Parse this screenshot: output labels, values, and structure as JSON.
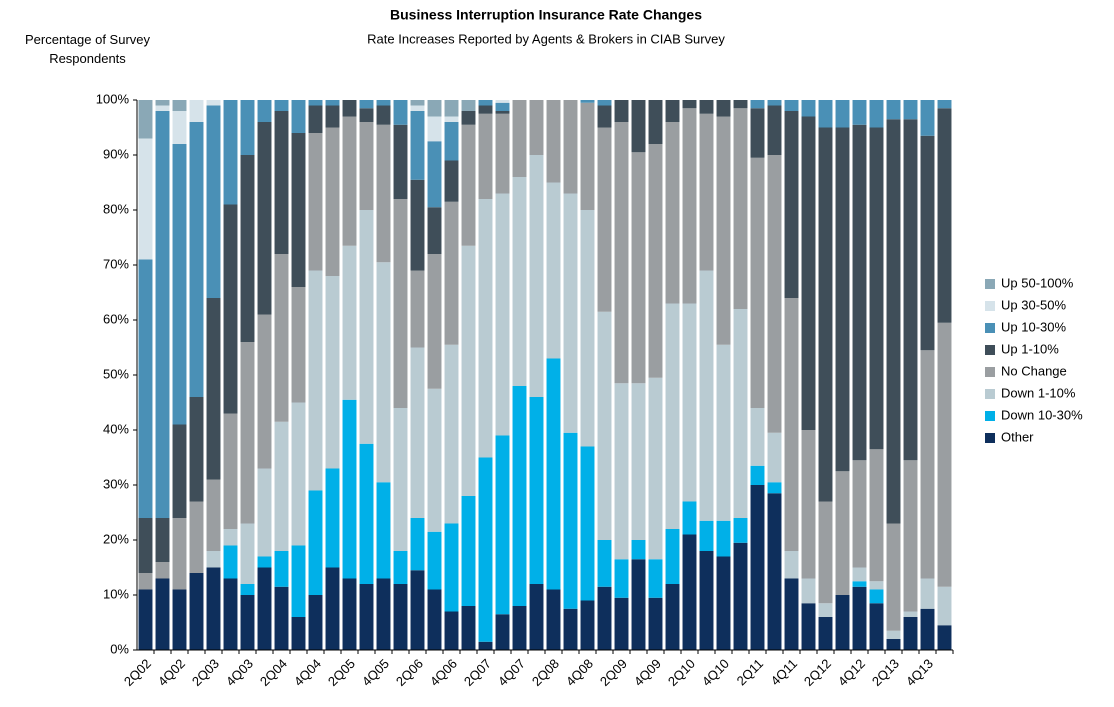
{
  "chart_data": {
    "type": "stacked_bar",
    "title": "Business Interruption Insurance Rate Changes",
    "subtitle": "Rate Increases Reported by Agents & Brokers in CIAB Survey",
    "y_axis_label": "Percentage of Survey Respondents",
    "categories": [
      "2Q02",
      null,
      "4Q02",
      null,
      "2Q03",
      null,
      "4Q03",
      null,
      "2Q04",
      null,
      "4Q04",
      null,
      "2Q05",
      null,
      "4Q05",
      null,
      "2Q06",
      null,
      "4Q06",
      null,
      "2Q07",
      null,
      "4Q07",
      null,
      "2Q08",
      null,
      "4Q08",
      null,
      "2Q09",
      null,
      "4Q09",
      null,
      "2Q10",
      null,
      "4Q10",
      null,
      "2Q11",
      null,
      "4Q11",
      null,
      "2Q12",
      null,
      "4Q12",
      null,
      "2Q13",
      null,
      "4Q13",
      null
    ],
    "ylim": [
      0,
      100
    ],
    "yticks": [
      {
        "value": 0,
        "label": "0%"
      },
      {
        "value": 10,
        "label": "10%"
      },
      {
        "value": 20,
        "label": "20%"
      },
      {
        "value": 30,
        "label": "30%"
      },
      {
        "value": 40,
        "label": "40%"
      },
      {
        "value": 50,
        "label": "50%"
      },
      {
        "value": 60,
        "label": "60%"
      },
      {
        "value": 70,
        "label": "70%"
      },
      {
        "value": 80,
        "label": "80%"
      },
      {
        "value": 90,
        "label": "90%"
      },
      {
        "value": 100,
        "label": "100%"
      }
    ],
    "legend_position": "right",
    "series": [
      {
        "name": "Up 50-100%",
        "color": "#8aa8b6",
        "values": [
          7,
          1,
          2,
          0,
          0,
          0,
          0,
          0,
          0,
          0,
          0,
          0,
          0,
          0,
          0,
          0,
          1,
          3,
          3,
          2,
          0,
          0,
          0,
          0,
          0,
          0,
          0,
          0,
          0,
          0,
          0,
          0,
          0,
          0,
          0,
          0,
          0,
          0,
          0,
          0,
          0,
          0,
          0,
          0,
          0,
          0,
          0,
          0
        ]
      },
      {
        "name": "Up 30-50%",
        "color": "#d6e3ea",
        "values": [
          22,
          1,
          6,
          4,
          1,
          0,
          0,
          0,
          0,
          0,
          0,
          0,
          0,
          0,
          0,
          0,
          1,
          4.5,
          1,
          0,
          0,
          0.5,
          0,
          0,
          0,
          0,
          0,
          0,
          0,
          0,
          0,
          0,
          0,
          0,
          0,
          0,
          0,
          0,
          0,
          0,
          0,
          0,
          0,
          0,
          0,
          0,
          0,
          0
        ]
      },
      {
        "name": "Up 10-30%",
        "color": "#4a90b6",
        "values": [
          47,
          74,
          51,
          50,
          35,
          19,
          10,
          4,
          2,
          6,
          1,
          1,
          0,
          1.5,
          1,
          4.5,
          12.5,
          12,
          7,
          0,
          1,
          1.5,
          0,
          0,
          0,
          0,
          0.5,
          1,
          0,
          0,
          0,
          0,
          0,
          0,
          0,
          0,
          1.5,
          1,
          2,
          3,
          5,
          5,
          4.5,
          5,
          3.5,
          3.5,
          6.5,
          1.5
        ]
      },
      {
        "name": "Up 1-10%",
        "color": "#3f4e59",
        "values": [
          10,
          8,
          17,
          19,
          33,
          38,
          34,
          35,
          26,
          28,
          5,
          4,
          3,
          2.5,
          3.5,
          13.5,
          16.5,
          8.5,
          7.5,
          2.5,
          1.5,
          0.5,
          0,
          0,
          0,
          0,
          0,
          4,
          4,
          9.5,
          8,
          4,
          1.5,
          2.5,
          3,
          1.5,
          9,
          9,
          34,
          57,
          68,
          62.5,
          61,
          58.5,
          73.5,
          62,
          39,
          39
        ]
      },
      {
        "name": "No Change",
        "color": "#9a9ea1",
        "values": [
          3,
          3,
          13,
          13,
          13,
          21,
          33,
          28,
          30.5,
          21,
          25,
          27,
          23.5,
          16,
          25,
          38,
          14,
          24.5,
          26,
          22,
          15.5,
          14.5,
          14,
          10,
          15,
          17,
          19.5,
          33.5,
          47.5,
          42,
          42.5,
          33,
          35.5,
          28.5,
          41.5,
          36.5,
          45.5,
          50.5,
          46,
          27,
          18.5,
          22.5,
          19.5,
          24,
          19.5,
          27.5,
          41.5,
          48
        ]
      },
      {
        "name": "Down 1-10%",
        "color": "#b9cbd2",
        "values": [
          0,
          0,
          0,
          0,
          3,
          3,
          11,
          16,
          23.5,
          26,
          40,
          35,
          28,
          42.5,
          40,
          26,
          31,
          26,
          32.5,
          45.5,
          47,
          44,
          38,
          44,
          32,
          43.5,
          43,
          41.5,
          32,
          28.5,
          33,
          41,
          36,
          45.5,
          32,
          38,
          10.5,
          9,
          5,
          4.5,
          2.5,
          0,
          2.5,
          1.5,
          1.5,
          1,
          5.5,
          7
        ]
      },
      {
        "name": "Down 10-30%",
        "color": "#00b0e8",
        "values": [
          0,
          0,
          0,
          0,
          0,
          6,
          2,
          2,
          6.5,
          13,
          19,
          18,
          32.5,
          25.5,
          17.5,
          6,
          9.5,
          10.5,
          16,
          20,
          33.5,
          32.5,
          40,
          34,
          42,
          32,
          28,
          8.5,
          7,
          3.5,
          7,
          10,
          6,
          5.5,
          6.5,
          4.5,
          3.5,
          2,
          0,
          0,
          0,
          0,
          1,
          2.5,
          0,
          0,
          0,
          0
        ]
      },
      {
        "name": "Other",
        "color": "#0e2f5c",
        "values": [
          11,
          13,
          11,
          14,
          15,
          13,
          10,
          15,
          11.5,
          6,
          10,
          15,
          13,
          12,
          13,
          12,
          14.5,
          11,
          7,
          8,
          1.5,
          6.5,
          8,
          12,
          11,
          7.5,
          9,
          11.5,
          9.5,
          16.5,
          9.5,
          12,
          21,
          18,
          17,
          19.5,
          30,
          28.5,
          13,
          8.5,
          6,
          10,
          11.5,
          8.5,
          2,
          6,
          7.5,
          4.5
        ]
      }
    ]
  }
}
